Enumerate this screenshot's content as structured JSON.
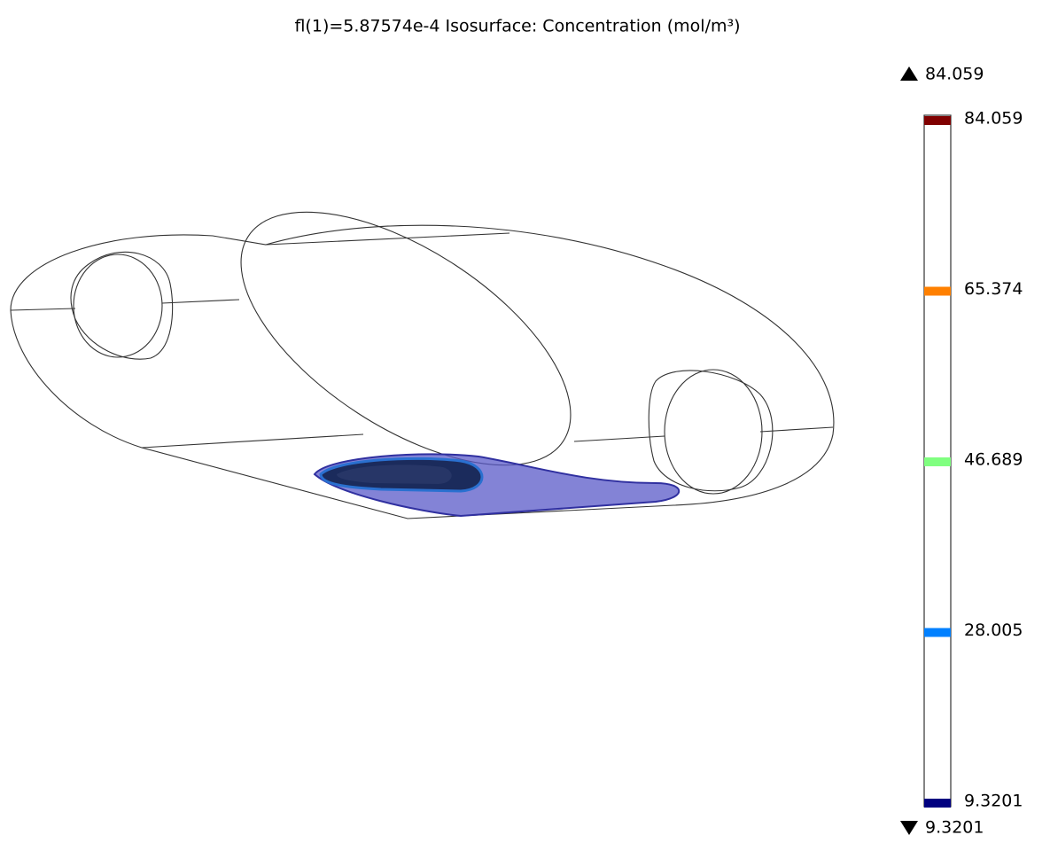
{
  "chart_data": {
    "type": "isosurface",
    "title": "fl(1)=5.87574e-4   Isosurface: Concentration (mol/m³)",
    "max": 84.059,
    "min": 9.3201,
    "clim": [
      9.3201,
      84.059
    ],
    "levels": [
      {
        "value": 84.059,
        "color": "#800000"
      },
      {
        "value": 65.374,
        "color": "#ff8000"
      },
      {
        "value": 46.689,
        "color": "#80ff80"
      },
      {
        "value": 28.005,
        "color": "#0080ff"
      },
      {
        "value": 9.3201,
        "color": "#000080"
      }
    ]
  }
}
